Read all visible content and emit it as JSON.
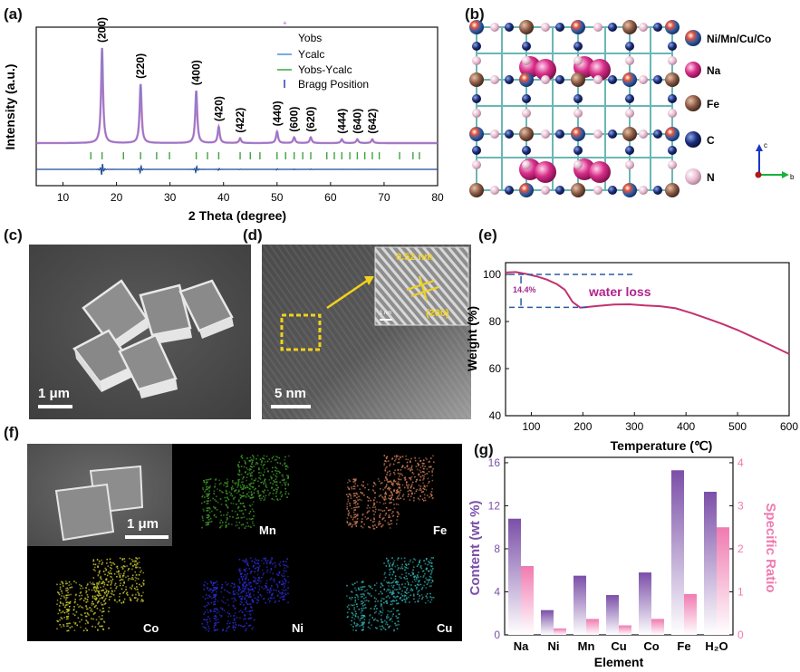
{
  "panels": {
    "a": "(a)",
    "b": "(b)",
    "c": "(c)",
    "d": "(d)",
    "e": "(e)",
    "f": "(f)",
    "g": "(g)"
  },
  "xrd": {
    "legend": [
      "Yobs",
      "Ycalc",
      "Yobs-Ycalc",
      "Bragg Position"
    ],
    "colors": {
      "obs": "#d257b3",
      "calc": "#4a90d9",
      "diff": "#3fa33f",
      "bragg": "#2a3fb0",
      "diffline": "#1f4b96"
    }
  },
  "structure": {
    "legend": [
      "Ni/Mn/Cu/Co",
      "Na",
      "Fe",
      "C",
      "N"
    ],
    "axes": [
      "c",
      "b"
    ]
  },
  "sem_c": {
    "scale": "1 μm"
  },
  "tem_d": {
    "scale": "5 nm",
    "d_spacing": "0.52 nm",
    "plane": "(200)",
    "inset_scale": "1 nm"
  },
  "tga": {
    "annotation": "water loss",
    "loss": "14.4%"
  },
  "maps": {
    "sem_scale": "1 μm",
    "labels": [
      "Mn",
      "Fe",
      "Co",
      "Ni",
      "Cu"
    ]
  },
  "chart_data": [
    {
      "type": "scatter",
      "panel": "a",
      "title": "",
      "xlabel": "2 Theta (degree)",
      "ylabel": "Intensity (a.u.)",
      "xlim": [
        5,
        80
      ],
      "xticks": [
        10,
        20,
        30,
        40,
        50,
        60,
        70,
        80
      ],
      "peaks": [
        {
          "x": 17.3,
          "label": "(200)",
          "intensity": 1.0
        },
        {
          "x": 24.5,
          "label": "(220)",
          "intensity": 0.62
        },
        {
          "x": 34.9,
          "label": "(400)",
          "intensity": 0.55
        },
        {
          "x": 39.1,
          "label": "(420)",
          "intensity": 0.17
        },
        {
          "x": 43.1,
          "label": "(422)",
          "intensity": 0.05
        },
        {
          "x": 50.0,
          "label": "(440)",
          "intensity": 0.12
        },
        {
          "x": 53.2,
          "label": "(600)",
          "intensity": 0.06
        },
        {
          "x": 56.3,
          "label": "(620)",
          "intensity": 0.06
        },
        {
          "x": 62.1,
          "label": "(444)",
          "intensity": 0.04
        },
        {
          "x": 65.0,
          "label": "(640)",
          "intensity": 0.04
        },
        {
          "x": 67.8,
          "label": "(642)",
          "intensity": 0.04
        }
      ],
      "bragg": [
        15.2,
        17.3,
        21.3,
        24.5,
        27.5,
        29.9,
        34.9,
        37.0,
        39.1,
        43.1,
        45.0,
        46.8,
        50.0,
        51.6,
        53.2,
        54.8,
        56.3,
        59.3,
        60.7,
        62.1,
        63.6,
        65.0,
        66.4,
        67.8,
        69.1,
        72.9,
        75.4,
        76.6
      ]
    },
    {
      "type": "line",
      "panel": "e",
      "title": "",
      "xlabel": "Temperature (℃)",
      "ylabel": "Weight (%)",
      "xlim": [
        50,
        600
      ],
      "ylim": [
        40,
        105
      ],
      "xticks": [
        100,
        200,
        300,
        400,
        500,
        600
      ],
      "yticks": [
        40,
        60,
        80,
        100
      ],
      "x": [
        50,
        70,
        90,
        110,
        130,
        150,
        165,
        180,
        195,
        210,
        230,
        260,
        290,
        320,
        350,
        380,
        410,
        440,
        470,
        500,
        530,
        560,
        580,
        600
      ],
      "y": [
        100.8,
        101,
        100.2,
        99.2,
        97.8,
        95.8,
        93.5,
        88.3,
        85.9,
        86.2,
        86.6,
        87.2,
        87.3,
        86.8,
        86.5,
        85.6,
        83.6,
        81.4,
        79.0,
        76.4,
        73.4,
        70.4,
        68.3,
        66.2
      ],
      "guides": [
        100,
        86
      ]
    },
    {
      "type": "bar",
      "panel": "g",
      "title": "",
      "xlabel": "Element",
      "ylabel": "Content (wt %)",
      "ylabel2": "Specific Ratio",
      "categories": [
        "Na",
        "Ni",
        "Mn",
        "Cu",
        "Co",
        "Fe",
        "H₂O"
      ],
      "ylim": [
        0,
        16.5
      ],
      "ylim2": [
        0,
        4.125
      ],
      "yticks": [
        0,
        4,
        8,
        12,
        16
      ],
      "yticks2": [
        0,
        1,
        2,
        3,
        4
      ],
      "series": [
        {
          "name": "Content",
          "values": [
            10.8,
            2.3,
            5.5,
            3.7,
            5.8,
            15.3,
            13.3
          ],
          "color": "#7b4fa8"
        },
        {
          "name": "Specific Ratio",
          "values": [
            1.6,
            0.15,
            0.37,
            0.22,
            0.37,
            0.95,
            2.5
          ],
          "color": "#f07ab0"
        }
      ]
    }
  ]
}
